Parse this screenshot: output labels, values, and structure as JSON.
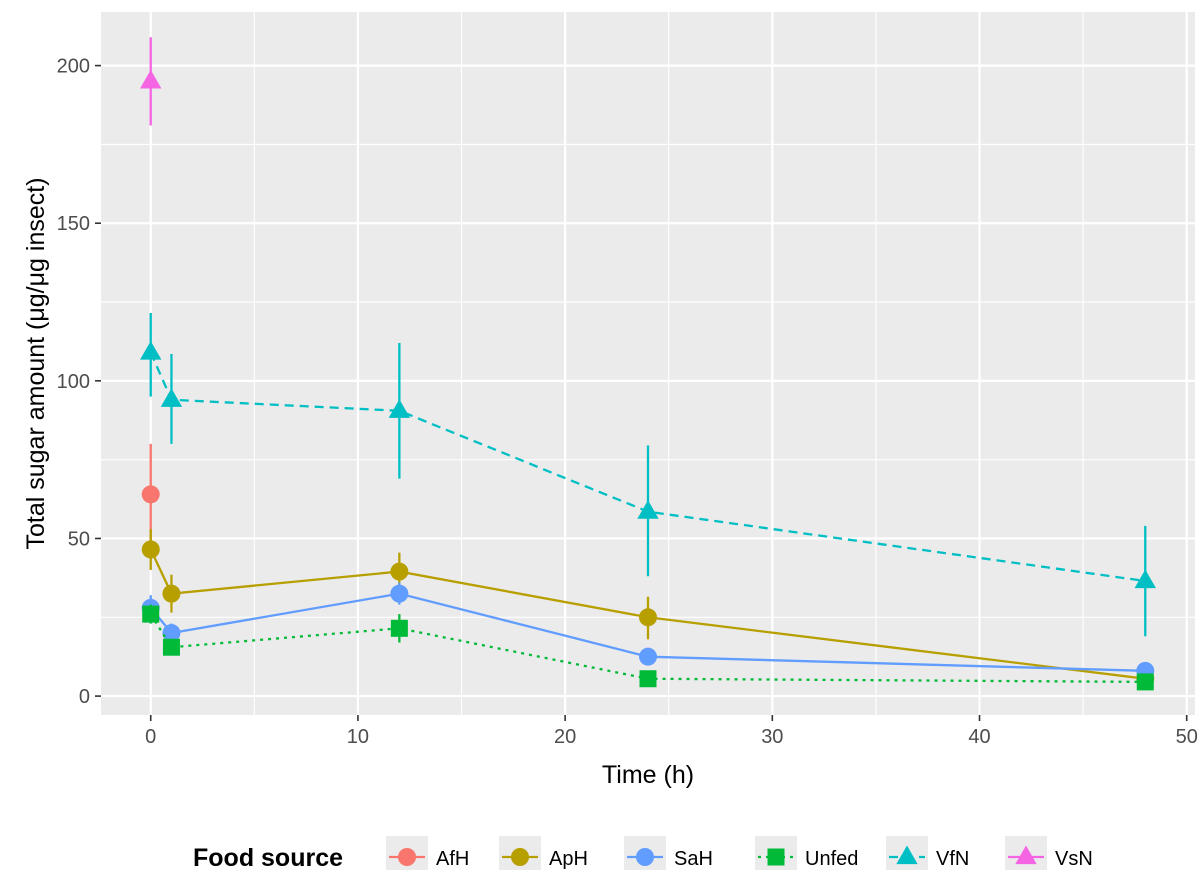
{
  "chart_data": {
    "type": "line",
    "title": "",
    "xlabel": "Time (h)",
    "ylabel": "Total sugar amount (μg/μg insect)",
    "xlim": [
      -2.4,
      50.4
    ],
    "ylim": [
      -6,
      217
    ],
    "x_ticks": [
      0,
      10,
      20,
      30,
      40,
      50
    ],
    "y_ticks": [
      0,
      50,
      100,
      150,
      200
    ],
    "x_tick_labels": [
      "0",
      "10",
      "20",
      "30",
      "40",
      "50"
    ],
    "y_tick_labels": [
      "0",
      "50",
      "100",
      "150",
      "200"
    ],
    "grid": true,
    "legend_position": "bottom",
    "legend_title": "Food source",
    "series": [
      {
        "name": "AfH",
        "color": "#F8766D",
        "shape": "circle",
        "linetype": "solid",
        "points": [
          {
            "x": 0,
            "y": 64,
            "lo": 48,
            "hi": 80
          }
        ]
      },
      {
        "name": "ApH",
        "color": "#B79F00",
        "shape": "circle",
        "linetype": "solid",
        "points": [
          {
            "x": 0,
            "y": 46.5,
            "lo": 40,
            "hi": 53
          },
          {
            "x": 1,
            "y": 32.5,
            "lo": 26.5,
            "hi": 38.5
          },
          {
            "x": 12,
            "y": 39.5,
            "lo": 33.5,
            "hi": 45.5
          },
          {
            "x": 24,
            "y": 25,
            "lo": 18,
            "hi": 31.5
          },
          {
            "x": 48,
            "y": 5.5,
            "lo": 3.5,
            "hi": 7.5
          }
        ]
      },
      {
        "name": "SaH",
        "color": "#619CFF",
        "shape": "circle",
        "linetype": "solid",
        "points": [
          {
            "x": 0,
            "y": 28,
            "lo": 24,
            "hi": 32
          },
          {
            "x": 1,
            "y": 20,
            "lo": 17,
            "hi": 23
          },
          {
            "x": 12,
            "y": 32.5,
            "lo": 29,
            "hi": 36
          },
          {
            "x": 24,
            "y": 12.5,
            "lo": 10,
            "hi": 15
          },
          {
            "x": 48,
            "y": 8,
            "lo": 6,
            "hi": 10
          }
        ]
      },
      {
        "name": "Unfed",
        "color": "#00BA38",
        "shape": "square",
        "linetype": "dotted",
        "points": [
          {
            "x": 0,
            "y": 26,
            "lo": 23,
            "hi": 29
          },
          {
            "x": 1,
            "y": 15.5,
            "lo": 13,
            "hi": 18
          },
          {
            "x": 12,
            "y": 21.5,
            "lo": 17,
            "hi": 26
          },
          {
            "x": 24,
            "y": 5.5,
            "lo": 4,
            "hi": 7
          },
          {
            "x": 48,
            "y": 4.5,
            "lo": 3,
            "hi": 6
          }
        ]
      },
      {
        "name": "VfN",
        "color": "#00BFC4",
        "shape": "triangle",
        "linetype": "dashed",
        "points": [
          {
            "x": 0,
            "y": 109,
            "lo": 95,
            "hi": 121.5
          },
          {
            "x": 1,
            "y": 94,
            "lo": 80,
            "hi": 108.5
          },
          {
            "x": 12,
            "y": 90.5,
            "lo": 69,
            "hi": 112
          },
          {
            "x": 24,
            "y": 58.5,
            "lo": 38,
            "hi": 79.5
          },
          {
            "x": 48,
            "y": 36.5,
            "lo": 19,
            "hi": 54
          }
        ]
      },
      {
        "name": "VsN",
        "color": "#F564E3",
        "shape": "triangle",
        "linetype": "solid",
        "points": [
          {
            "x": 0,
            "y": 195,
            "lo": 181,
            "hi": 209
          }
        ]
      }
    ]
  }
}
